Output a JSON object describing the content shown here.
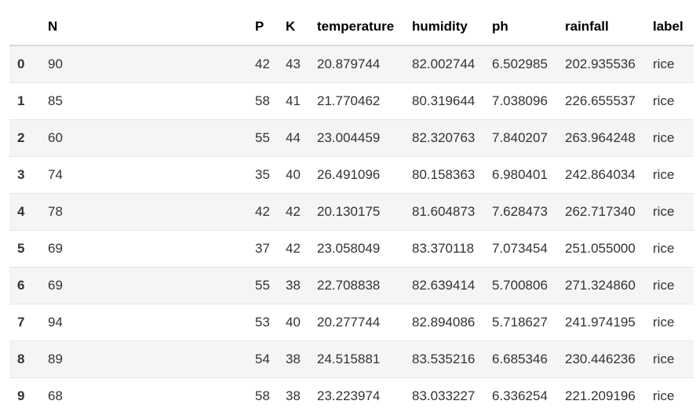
{
  "table": {
    "columns": [
      "N",
      "P",
      "K",
      "temperature",
      "humidity",
      "ph",
      "rainfall",
      "label"
    ],
    "rows": [
      {
        "index": "0",
        "N": "90",
        "P": "42",
        "K": "43",
        "temperature": "20.879744",
        "humidity": "82.002744",
        "ph": "6.502985",
        "rainfall": "202.935536",
        "label": "rice"
      },
      {
        "index": "1",
        "N": "85",
        "P": "58",
        "K": "41",
        "temperature": "21.770462",
        "humidity": "80.319644",
        "ph": "7.038096",
        "rainfall": "226.655537",
        "label": "rice"
      },
      {
        "index": "2",
        "N": "60",
        "P": "55",
        "K": "44",
        "temperature": "23.004459",
        "humidity": "82.320763",
        "ph": "7.840207",
        "rainfall": "263.964248",
        "label": "rice"
      },
      {
        "index": "3",
        "N": "74",
        "P": "35",
        "K": "40",
        "temperature": "26.491096",
        "humidity": "80.158363",
        "ph": "6.980401",
        "rainfall": "242.864034",
        "label": "rice"
      },
      {
        "index": "4",
        "N": "78",
        "P": "42",
        "K": "42",
        "temperature": "20.130175",
        "humidity": "81.604873",
        "ph": "7.628473",
        "rainfall": "262.717340",
        "label": "rice"
      },
      {
        "index": "5",
        "N": "69",
        "P": "37",
        "K": "42",
        "temperature": "23.058049",
        "humidity": "83.370118",
        "ph": "7.073454",
        "rainfall": "251.055000",
        "label": "rice"
      },
      {
        "index": "6",
        "N": "69",
        "P": "55",
        "K": "38",
        "temperature": "22.708838",
        "humidity": "82.639414",
        "ph": "5.700806",
        "rainfall": "271.324860",
        "label": "rice"
      },
      {
        "index": "7",
        "N": "94",
        "P": "53",
        "K": "40",
        "temperature": "20.277744",
        "humidity": "82.894086",
        "ph": "5.718627",
        "rainfall": "241.974195",
        "label": "rice"
      },
      {
        "index": "8",
        "N": "89",
        "P": "54",
        "K": "38",
        "temperature": "24.515881",
        "humidity": "83.535216",
        "ph": "6.685346",
        "rainfall": "230.446236",
        "label": "rice"
      },
      {
        "index": "9",
        "N": "68",
        "P": "58",
        "K": "38",
        "temperature": "23.223974",
        "humidity": "83.033227",
        "ph": "6.336254",
        "rainfall": "221.209196",
        "label": "rice"
      }
    ]
  }
}
